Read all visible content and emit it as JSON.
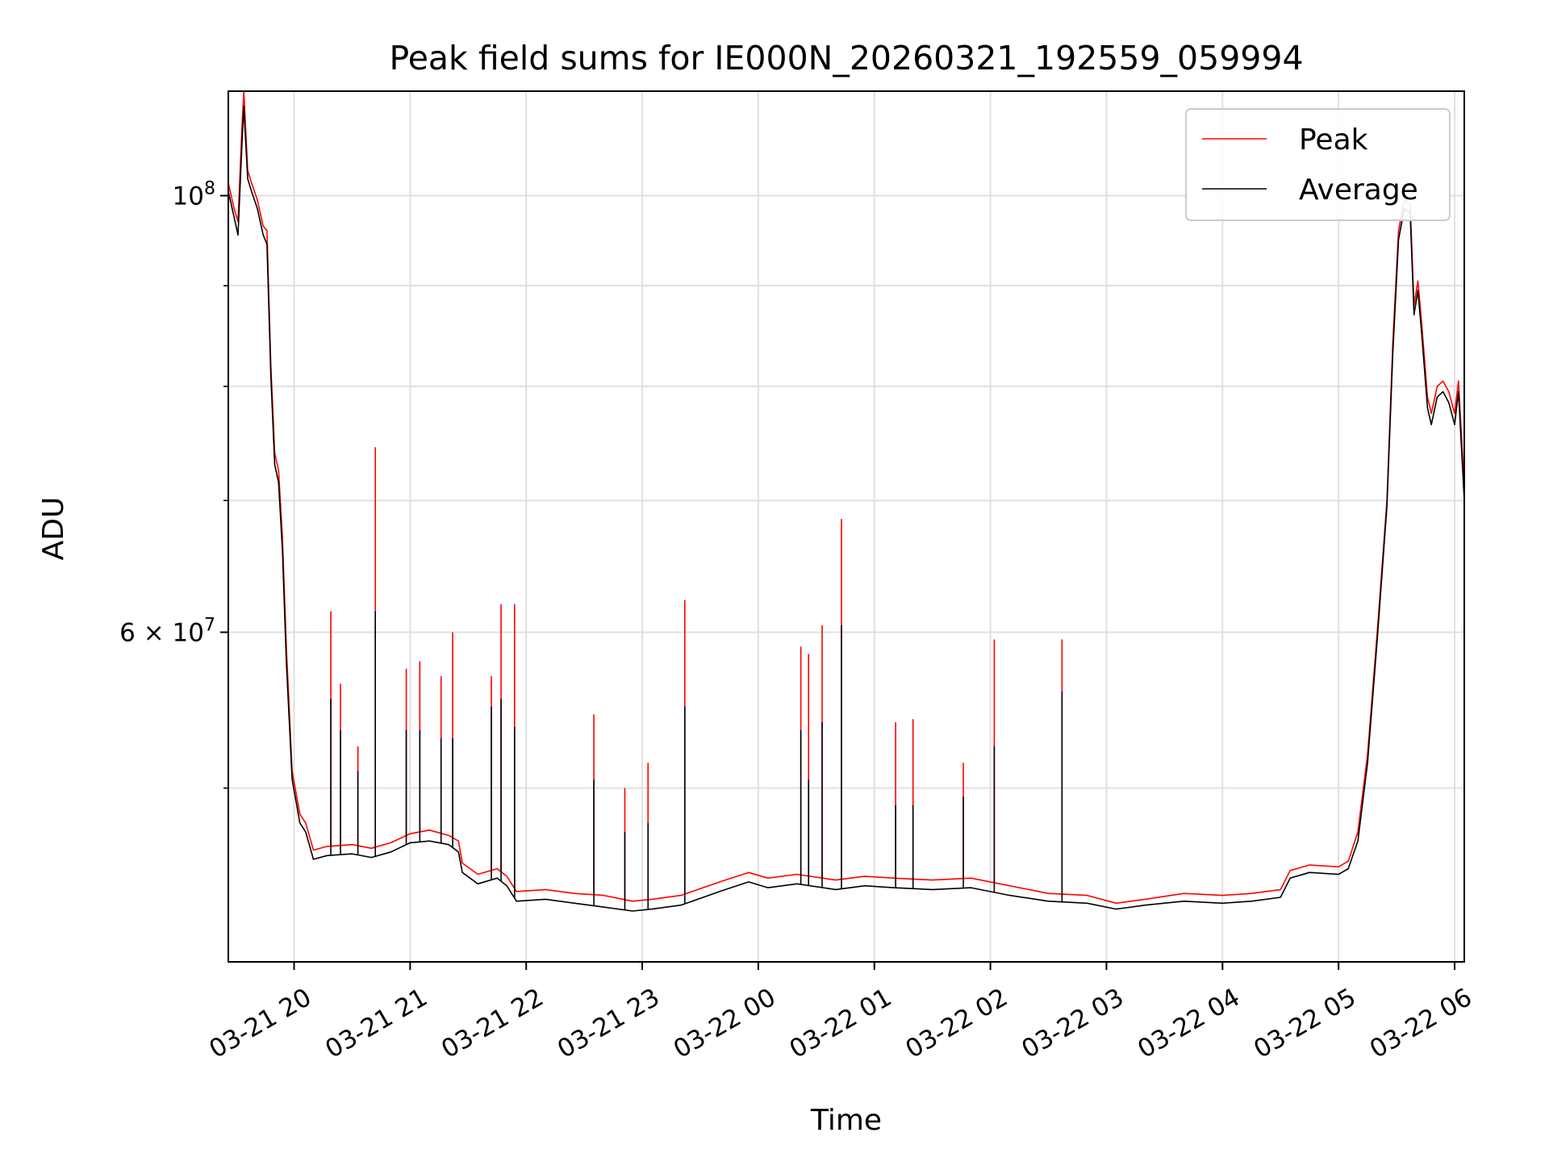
{
  "chart_data": {
    "type": "line",
    "title": "Peak field sums for IE000N_20260321_192559_059994",
    "xlabel": "Time",
    "ylabel": "ADU",
    "y_scale": "log",
    "ylim": [
      40800000,
      113000000
    ],
    "xlim": [
      "2026-03-21 19:26",
      "2026-03-22 06:05"
    ],
    "x_ticks": [
      {
        "x": "2026-03-21 20:00",
        "label": "03-21 20"
      },
      {
        "x": "2026-03-21 21:00",
        "label": "03-21 21"
      },
      {
        "x": "2026-03-21 22:00",
        "label": "03-21 22"
      },
      {
        "x": "2026-03-21 23:00",
        "label": "03-21 23"
      },
      {
        "x": "2026-03-22 00:00",
        "label": "03-22 00"
      },
      {
        "x": "2026-03-22 01:00",
        "label": "03-22 01"
      },
      {
        "x": "2026-03-22 02:00",
        "label": "03-22 02"
      },
      {
        "x": "2026-03-22 03:00",
        "label": "03-22 03"
      },
      {
        "x": "2026-03-22 04:00",
        "label": "03-22 04"
      },
      {
        "x": "2026-03-22 05:00",
        "label": "03-22 05"
      },
      {
        "x": "2026-03-22 06:00",
        "label": "03-22 06"
      }
    ],
    "y_major_ticks": [
      {
        "value": 60000000,
        "label_mantissa": "6",
        "label_base": "10",
        "label_exp": "7"
      },
      {
        "value": 100000000,
        "label_mantissa": "",
        "label_base": "10",
        "label_exp": "8"
      }
    ],
    "y_minor_ticks": [
      50000000,
      70000000,
      80000000,
      90000000
    ],
    "grid": true,
    "legend_position": "top-right",
    "series": [
      {
        "name": "Peak",
        "color": "#ff0000",
        "points": [
          [
            "2026-03-21 19:26",
            101500000
          ],
          [
            "2026-03-21 19:29",
            98500000
          ],
          [
            "2026-03-21 19:31",
            97000000
          ],
          [
            "2026-03-21 19:33",
            108000000
          ],
          [
            "2026-03-21 19:34",
            113000000
          ],
          [
            "2026-03-21 19:36",
            103000000
          ],
          [
            "2026-03-21 19:38",
            101500000
          ],
          [
            "2026-03-21 19:41",
            99500000
          ],
          [
            "2026-03-21 19:44",
            96500000
          ],
          [
            "2026-03-21 19:46",
            96000000
          ],
          [
            "2026-03-21 19:48",
            82000000
          ],
          [
            "2026-03-21 19:50",
            74000000
          ],
          [
            "2026-03-21 19:52",
            72500000
          ],
          [
            "2026-03-21 19:54",
            67000000
          ],
          [
            "2026-03-21 19:56",
            59000000
          ],
          [
            "2026-03-21 19:59",
            51000000
          ],
          [
            "2026-03-21 20:03",
            48500000
          ],
          [
            "2026-03-21 20:06",
            48000000
          ],
          [
            "2026-03-21 20:10",
            46500000
          ],
          [
            "2026-03-21 20:17",
            46700000
          ],
          [
            "2026-03-21 20:30",
            46800000
          ],
          [
            "2026-03-21 20:40",
            46600000
          ],
          [
            "2026-03-21 20:50",
            46900000
          ],
          [
            "2026-03-21 21:00",
            47400000
          ],
          [
            "2026-03-21 21:10",
            47600000
          ],
          [
            "2026-03-21 21:20",
            47300000
          ],
          [
            "2026-03-21 21:25",
            47000000
          ],
          [
            "2026-03-21 21:27",
            45800000
          ],
          [
            "2026-03-21 21:35",
            45200000
          ],
          [
            "2026-03-21 21:45",
            45500000
          ],
          [
            "2026-03-21 21:50",
            45100000
          ],
          [
            "2026-03-21 21:55",
            44300000
          ],
          [
            "2026-03-21 22:10",
            44400000
          ],
          [
            "2026-03-21 22:25",
            44200000
          ],
          [
            "2026-03-21 22:40",
            44100000
          ],
          [
            "2026-03-21 22:55",
            43800000
          ],
          [
            "2026-03-21 23:05",
            43900000
          ],
          [
            "2026-03-21 23:20",
            44100000
          ],
          [
            "2026-03-21 23:40",
            44800000
          ],
          [
            "2026-03-21 23:55",
            45300000
          ],
          [
            "2026-03-22 00:05",
            45000000
          ],
          [
            "2026-03-22 00:20",
            45200000
          ],
          [
            "2026-03-22 00:40",
            44900000
          ],
          [
            "2026-03-22 00:55",
            45100000
          ],
          [
            "2026-03-22 01:10",
            45000000
          ],
          [
            "2026-03-22 01:30",
            44900000
          ],
          [
            "2026-03-22 01:50",
            45000000
          ],
          [
            "2026-03-22 02:10",
            44600000
          ],
          [
            "2026-03-22 02:30",
            44200000
          ],
          [
            "2026-03-22 02:50",
            44100000
          ],
          [
            "2026-03-22 03:05",
            43700000
          ],
          [
            "2026-03-22 03:20",
            43900000
          ],
          [
            "2026-03-22 03:40",
            44200000
          ],
          [
            "2026-03-22 04:00",
            44100000
          ],
          [
            "2026-03-22 04:15",
            44200000
          ],
          [
            "2026-03-22 04:30",
            44400000
          ],
          [
            "2026-03-22 04:35",
            45400000
          ],
          [
            "2026-03-22 04:45",
            45700000
          ],
          [
            "2026-03-22 05:00",
            45600000
          ],
          [
            "2026-03-22 05:05",
            45900000
          ],
          [
            "2026-03-22 05:10",
            47500000
          ],
          [
            "2026-03-22 05:15",
            52000000
          ],
          [
            "2026-03-22 05:20",
            60000000
          ],
          [
            "2026-03-22 05:25",
            70000000
          ],
          [
            "2026-03-22 05:28",
            84000000
          ],
          [
            "2026-03-22 05:31",
            96000000
          ],
          [
            "2026-03-22 05:34",
            99500000
          ],
          [
            "2026-03-22 05:37",
            99000000
          ],
          [
            "2026-03-22 05:39",
            88000000
          ],
          [
            "2026-03-22 05:41",
            90500000
          ],
          [
            "2026-03-22 05:43",
            86000000
          ],
          [
            "2026-03-22 05:46",
            79000000
          ],
          [
            "2026-03-22 05:48",
            77500000
          ],
          [
            "2026-03-22 05:51",
            80000000
          ],
          [
            "2026-03-22 05:54",
            80500000
          ],
          [
            "2026-03-22 05:57",
            79500000
          ],
          [
            "2026-03-22 06:00",
            77500000
          ],
          [
            "2026-03-22 06:02",
            80500000
          ],
          [
            "2026-03-22 06:05",
            71000000
          ]
        ],
        "spikes": [
          [
            "2026-03-21 20:19",
            61500000
          ],
          [
            "2026-03-21 20:24",
            56500000
          ],
          [
            "2026-03-21 20:33",
            52500000
          ],
          [
            "2026-03-21 20:42",
            74500000
          ],
          [
            "2026-03-21 20:58",
            57500000
          ],
          [
            "2026-03-21 21:05",
            58000000
          ],
          [
            "2026-03-21 21:16",
            57000000
          ],
          [
            "2026-03-21 21:22",
            60000000
          ],
          [
            "2026-03-21 21:42",
            57000000
          ],
          [
            "2026-03-21 21:47",
            62000000
          ],
          [
            "2026-03-21 21:54",
            62000000
          ],
          [
            "2026-03-21 22:35",
            54500000
          ],
          [
            "2026-03-21 22:51",
            50000000
          ],
          [
            "2026-03-21 23:03",
            51500000
          ],
          [
            "2026-03-21 23:22",
            62300000
          ],
          [
            "2026-03-22 00:22",
            59000000
          ],
          [
            "2026-03-22 00:26",
            58500000
          ],
          [
            "2026-03-22 00:33",
            60500000
          ],
          [
            "2026-03-22 00:43",
            68500000
          ],
          [
            "2026-03-22 01:11",
            54000000
          ],
          [
            "2026-03-22 01:20",
            54200000
          ],
          [
            "2026-03-22 01:46",
            51500000
          ],
          [
            "2026-03-22 02:02",
            59500000
          ],
          [
            "2026-03-22 02:37",
            59500000
          ]
        ]
      },
      {
        "name": "Average",
        "color": "#000000",
        "points": [
          [
            "2026-03-21 19:26",
            100500000
          ],
          [
            "2026-03-21 19:29",
            97500000
          ],
          [
            "2026-03-21 19:31",
            95500000
          ],
          [
            "2026-03-21 19:33",
            106000000
          ],
          [
            "2026-03-21 19:34",
            111000000
          ],
          [
            "2026-03-21 19:36",
            102000000
          ],
          [
            "2026-03-21 19:38",
            100500000
          ],
          [
            "2026-03-21 19:41",
            98500000
          ],
          [
            "2026-03-21 19:44",
            95500000
          ],
          [
            "2026-03-21 19:46",
            94500000
          ],
          [
            "2026-03-21 19:48",
            81000000
          ],
          [
            "2026-03-21 19:50",
            73000000
          ],
          [
            "2026-03-21 19:52",
            71500000
          ],
          [
            "2026-03-21 19:54",
            66000000
          ],
          [
            "2026-03-21 19:56",
            58000000
          ],
          [
            "2026-03-21 19:59",
            50500000
          ],
          [
            "2026-03-21 20:03",
            48000000
          ],
          [
            "2026-03-21 20:06",
            47500000
          ],
          [
            "2026-03-21 20:10",
            46000000
          ],
          [
            "2026-03-21 20:17",
            46200000
          ],
          [
            "2026-03-21 20:30",
            46300000
          ],
          [
            "2026-03-21 20:40",
            46100000
          ],
          [
            "2026-03-21 20:50",
            46400000
          ],
          [
            "2026-03-21 21:00",
            46900000
          ],
          [
            "2026-03-21 21:10",
            47000000
          ],
          [
            "2026-03-21 21:20",
            46800000
          ],
          [
            "2026-03-21 21:25",
            46400000
          ],
          [
            "2026-03-21 21:27",
            45300000
          ],
          [
            "2026-03-21 21:35",
            44700000
          ],
          [
            "2026-03-21 21:45",
            45000000
          ],
          [
            "2026-03-21 21:50",
            44600000
          ],
          [
            "2026-03-21 21:55",
            43800000
          ],
          [
            "2026-03-21 22:10",
            43900000
          ],
          [
            "2026-03-21 22:25",
            43700000
          ],
          [
            "2026-03-21 22:40",
            43500000
          ],
          [
            "2026-03-21 22:55",
            43300000
          ],
          [
            "2026-03-21 23:05",
            43400000
          ],
          [
            "2026-03-21 23:20",
            43600000
          ],
          [
            "2026-03-21 23:40",
            44300000
          ],
          [
            "2026-03-21 23:55",
            44800000
          ],
          [
            "2026-03-22 00:05",
            44500000
          ],
          [
            "2026-03-22 00:20",
            44700000
          ],
          [
            "2026-03-22 00:40",
            44400000
          ],
          [
            "2026-03-22 00:55",
            44600000
          ],
          [
            "2026-03-22 01:10",
            44500000
          ],
          [
            "2026-03-22 01:30",
            44400000
          ],
          [
            "2026-03-22 01:50",
            44500000
          ],
          [
            "2026-03-22 02:10",
            44100000
          ],
          [
            "2026-03-22 02:30",
            43800000
          ],
          [
            "2026-03-22 02:50",
            43700000
          ],
          [
            "2026-03-22 03:05",
            43400000
          ],
          [
            "2026-03-22 03:20",
            43600000
          ],
          [
            "2026-03-22 03:40",
            43800000
          ],
          [
            "2026-03-22 04:00",
            43700000
          ],
          [
            "2026-03-22 04:15",
            43800000
          ],
          [
            "2026-03-22 04:30",
            44000000
          ],
          [
            "2026-03-22 04:35",
            45000000
          ],
          [
            "2026-03-22 04:45",
            45300000
          ],
          [
            "2026-03-22 05:00",
            45200000
          ],
          [
            "2026-03-22 05:05",
            45500000
          ],
          [
            "2026-03-22 05:10",
            47000000
          ],
          [
            "2026-03-22 05:15",
            51500000
          ],
          [
            "2026-03-22 05:20",
            59500000
          ],
          [
            "2026-03-22 05:25",
            69500000
          ],
          [
            "2026-03-22 05:28",
            83000000
          ],
          [
            "2026-03-22 05:31",
            95000000
          ],
          [
            "2026-03-22 05:34",
            98500000
          ],
          [
            "2026-03-22 05:37",
            98000000
          ],
          [
            "2026-03-22 05:39",
            87000000
          ],
          [
            "2026-03-22 05:41",
            89500000
          ],
          [
            "2026-03-22 05:43",
            85000000
          ],
          [
            "2026-03-22 05:46",
            78000000
          ],
          [
            "2026-03-22 05:48",
            76500000
          ],
          [
            "2026-03-22 05:51",
            79000000
          ],
          [
            "2026-03-22 05:54",
            79500000
          ],
          [
            "2026-03-22 05:57",
            78500000
          ],
          [
            "2026-03-22 06:00",
            76500000
          ],
          [
            "2026-03-22 06:02",
            79500000
          ],
          [
            "2026-03-22 06:05",
            70000000
          ]
        ],
        "spikes": [
          [
            "2026-03-21 20:19",
            55500000
          ],
          [
            "2026-03-21 20:24",
            53500000
          ],
          [
            "2026-03-21 20:33",
            51000000
          ],
          [
            "2026-03-21 20:42",
            61500000
          ],
          [
            "2026-03-21 20:58",
            53500000
          ],
          [
            "2026-03-21 21:05",
            53500000
          ],
          [
            "2026-03-21 21:16",
            53000000
          ],
          [
            "2026-03-21 21:22",
            53000000
          ],
          [
            "2026-03-21 21:42",
            55000000
          ],
          [
            "2026-03-21 21:47",
            55500000
          ],
          [
            "2026-03-21 21:54",
            53700000
          ],
          [
            "2026-03-21 22:35",
            50500000
          ],
          [
            "2026-03-21 22:51",
            47500000
          ],
          [
            "2026-03-21 23:03",
            48000000
          ],
          [
            "2026-03-21 23:22",
            55000000
          ],
          [
            "2026-03-22 00:22",
            53500000
          ],
          [
            "2026-03-22 00:26",
            50500000
          ],
          [
            "2026-03-22 00:33",
            54000000
          ],
          [
            "2026-03-22 00:43",
            60500000
          ],
          [
            "2026-03-22 01:11",
            49000000
          ],
          [
            "2026-03-22 01:20",
            49000000
          ],
          [
            "2026-03-22 01:46",
            49500000
          ],
          [
            "2026-03-22 02:02",
            52500000
          ],
          [
            "2026-03-22 02:37",
            56000000
          ]
        ]
      }
    ]
  }
}
